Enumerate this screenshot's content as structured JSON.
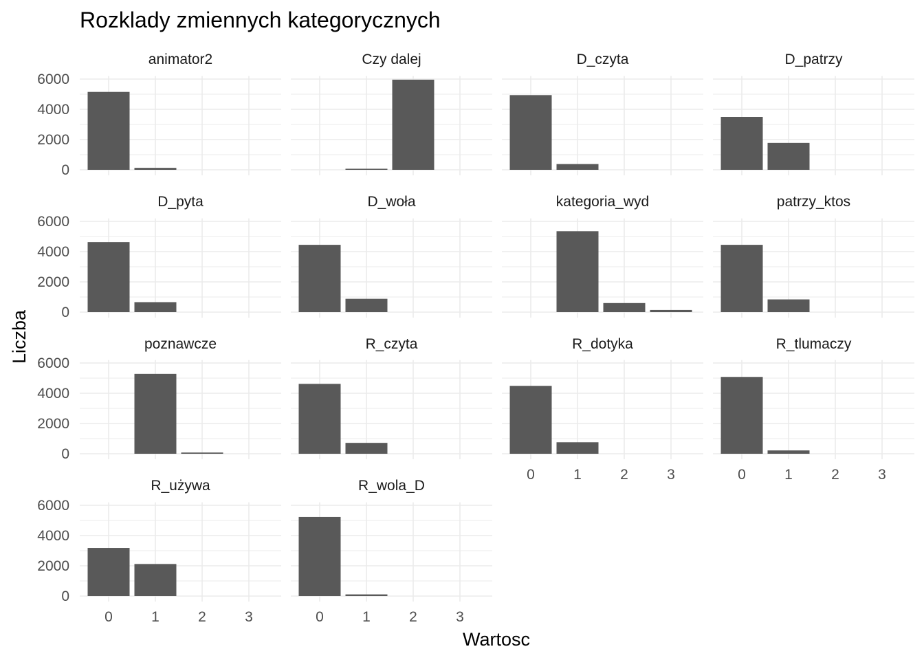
{
  "chart_data": {
    "type": "bar",
    "title": "Rozklady zmiennych kategorycznych",
    "xlabel": "Wartosc",
    "ylabel": "Liczba",
    "x_categories": [
      "0",
      "1",
      "2",
      "3"
    ],
    "y_ticks": [
      "0",
      "2000",
      "4000",
      "6000"
    ],
    "ylim": [
      0,
      6200
    ],
    "grid": true,
    "panels": [
      {
        "name": "animator2",
        "values": [
          5150,
          130,
          0,
          0
        ]
      },
      {
        "name": "Czy dalej",
        "values": [
          0,
          70,
          5960,
          0
        ]
      },
      {
        "name": "D_czyta",
        "values": [
          4940,
          380,
          0,
          0
        ]
      },
      {
        "name": "D_patrzy",
        "values": [
          3500,
          1780,
          0,
          0
        ]
      },
      {
        "name": "D_pyta",
        "values": [
          4630,
          660,
          0,
          0
        ]
      },
      {
        "name": "D_woła",
        "values": [
          4450,
          880,
          0,
          0
        ]
      },
      {
        "name": "kategoria_wyd",
        "values": [
          0,
          5350,
          600,
          140
        ]
      },
      {
        "name": "patrzy_ktos",
        "values": [
          4450,
          840,
          0,
          0
        ]
      },
      {
        "name": "poznawcze",
        "values": [
          0,
          5280,
          80,
          0
        ]
      },
      {
        "name": "R_czyta",
        "values": [
          4620,
          720,
          0,
          0
        ]
      },
      {
        "name": "R_dotyka",
        "values": [
          4490,
          760,
          0,
          0
        ]
      },
      {
        "name": "R_tlumaczy",
        "values": [
          5080,
          220,
          0,
          0
        ]
      },
      {
        "name": "R_używa",
        "values": [
          3180,
          2120,
          0,
          0
        ]
      },
      {
        "name": "R_wola_D",
        "values": [
          5230,
          110,
          0,
          0
        ]
      }
    ],
    "bar_color": "#595959",
    "grid_color": "#ebebeb"
  }
}
